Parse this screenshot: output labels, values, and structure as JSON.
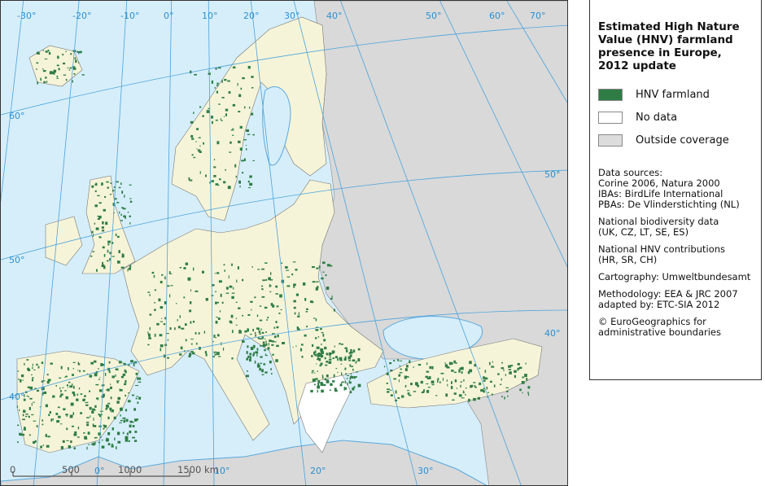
{
  "legend": {
    "title": [
      "Estimated High Nature",
      "Value (HNV) farmland",
      "presence in Europe,",
      "2012 update"
    ],
    "items": [
      {
        "label": "HNV farmland",
        "color": "#2e7d45"
      },
      {
        "label": "No data",
        "color": "#ffffff"
      },
      {
        "label": "Outside coverage",
        "color": "#dcdcdc"
      }
    ],
    "sources": [
      [
        "Data sources:",
        "Corine 2006, Natura 2000",
        "IBAs: BirdLife International",
        "PBAs: De Vlinderstichting (NL)"
      ],
      [
        "National biodiversity data",
        "(UK, CZ, LT, SE, ES)"
      ],
      [
        "National HNV contributions",
        "(HR, SR, CH)"
      ],
      [
        "Cartography: Umweltbundesamt"
      ],
      [
        "Methodology: EEA & JRC 2007",
        "adapted by: ETC-SIA 2012"
      ],
      [
        "© EuroGeographics for",
        "administrative boundaries"
      ]
    ]
  },
  "map": {
    "colors": {
      "sea": "#d6eefa",
      "land": "#f6f4d8",
      "outside": "#d9d9d9",
      "hnv": "#2e7d45",
      "graticule": "#4aa3dc"
    },
    "graticule_labels": {
      "top": [
        "-30°",
        "-20°",
        "-10°",
        "0°",
        "10°",
        "20°",
        "30°",
        "40°",
        "50°",
        "60°",
        "70°"
      ],
      "left": [
        "60°",
        "50°",
        "40°"
      ],
      "right": [
        "50°",
        "40°"
      ],
      "bottom": [
        "0°",
        "10°",
        "20°",
        "30°"
      ]
    },
    "scale_bar": {
      "ticks": [
        "0",
        "500",
        "1000",
        "1500"
      ],
      "unit": "km"
    }
  }
}
